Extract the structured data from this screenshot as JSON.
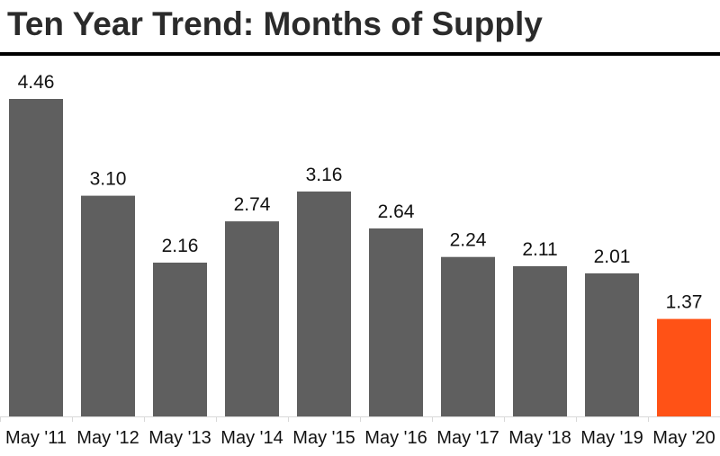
{
  "chart_data": {
    "type": "bar",
    "title": "Ten Year Trend: Months of Supply",
    "xlabel": "",
    "ylabel": "",
    "categories": [
      "May '11",
      "May '12",
      "May '13",
      "May '14",
      "May '15",
      "May '16",
      "May '17",
      "May '18",
      "May '19",
      "May '20"
    ],
    "values": [
      4.46,
      3.1,
      2.16,
      2.74,
      3.16,
      2.64,
      2.24,
      2.11,
      2.01,
      1.37
    ],
    "value_labels": [
      "4.46",
      "3.10",
      "2.16",
      "2.74",
      "3.16",
      "2.64",
      "2.24",
      "2.11",
      "2.01",
      "1.37"
    ],
    "ylim": [
      0,
      4.46
    ],
    "grid": false,
    "legend": "none",
    "colors": {
      "bar": "#5f5f5f",
      "highlight": "#ff5216",
      "text": "#111111",
      "title": "#2b2b2b",
      "rule": "#000000"
    },
    "highlight_index": 9
  }
}
